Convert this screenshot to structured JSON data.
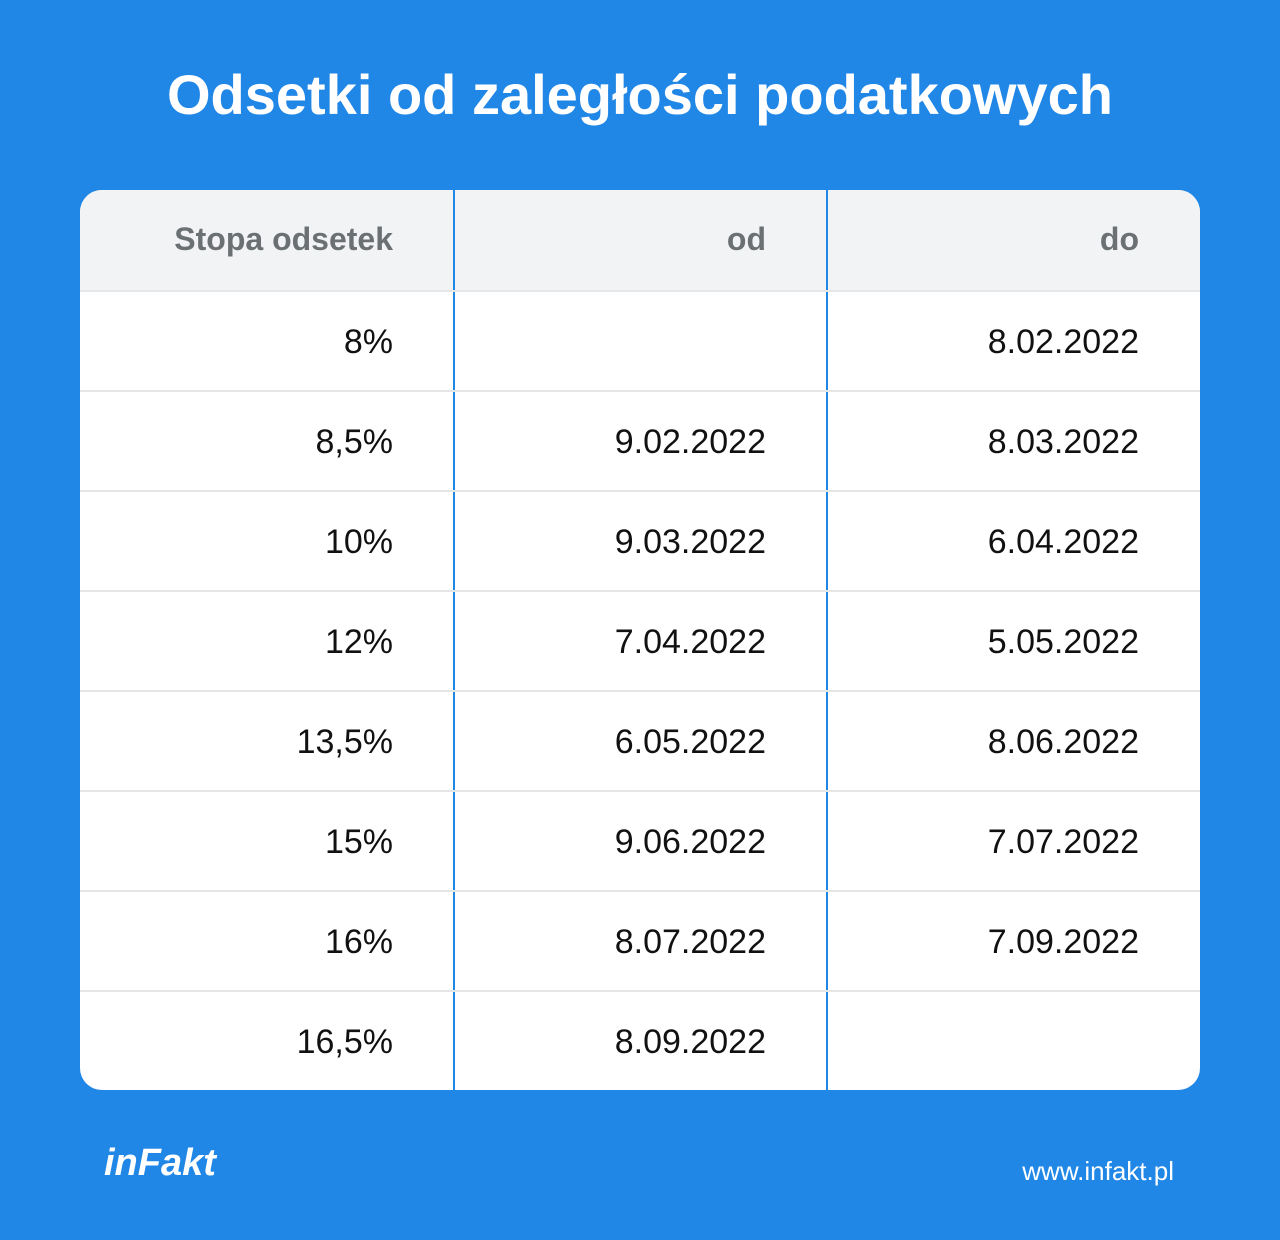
{
  "header": {
    "title": "Odsetki od zaległości podatkowych"
  },
  "table": {
    "columns": [
      "Stopa odsetek",
      "od",
      "do"
    ],
    "rows": [
      [
        "8%",
        null,
        "8.02.2022"
      ],
      [
        "8,5%",
        "9.02.2022",
        "8.03.2022"
      ],
      [
        "10%",
        "9.03.2022",
        "6.04.2022"
      ],
      [
        "12%",
        "7.04.2022",
        "5.05.2022"
      ],
      [
        "13,5%",
        "6.05.2022",
        "8.06.2022"
      ],
      [
        "15%",
        "9.06.2022",
        "7.07.2022"
      ],
      [
        "16%",
        "8.07.2022",
        "7.09.2022"
      ],
      [
        "16,5%",
        "8.09.2022",
        null
      ]
    ]
  },
  "footer": {
    "logo": "inFakt",
    "url": "www.infakt.pl"
  }
}
